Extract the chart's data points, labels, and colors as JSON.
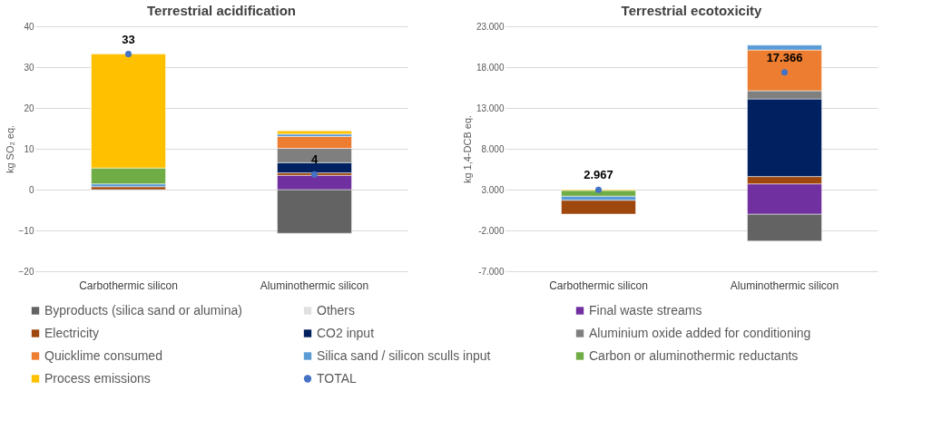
{
  "chart_data": [
    {
      "type": "bar",
      "title": "Terrestrial acidification",
      "ylabel": "kg SO₂ eq.",
      "categories": [
        "Carbothermic silicon",
        "Aluminothermic silicon"
      ],
      "stacked": true,
      "ylim": [
        -20,
        40
      ],
      "yticks": [
        -20,
        -10,
        0,
        10,
        20,
        30,
        40
      ],
      "grid": "y",
      "legend": "bottom",
      "series": [
        {
          "name": "Byproducts (silica sand or alumina)",
          "color": "#636363",
          "values": [
            null,
            -10.7
          ]
        },
        {
          "name": "Others",
          "color": "#e0e0e0",
          "values": [
            null,
            null
          ]
        },
        {
          "name": "Final waste streams",
          "color": "#7030a0",
          "values": [
            null,
            3.5
          ]
        },
        {
          "name": "Electricity",
          "color": "#9e480e",
          "values": [
            0.7,
            0.6
          ]
        },
        {
          "name": "CO2 input",
          "color": "#002060",
          "values": [
            null,
            2.5
          ]
        },
        {
          "name": "Aluminium oxide added for conditioning",
          "color": "#7f7f7f",
          "values": [
            null,
            3.5
          ]
        },
        {
          "name": "Quicklime consumed",
          "color": "#ed7d31",
          "values": [
            null,
            2.9
          ]
        },
        {
          "name": "Silica sand / silicon sculls input",
          "color": "#5b9bd5",
          "values": [
            0.7,
            0.6
          ]
        },
        {
          "name": "Carbon or aluminothermic reductants",
          "color": "#70ad47",
          "values": [
            3.9,
            null
          ]
        },
        {
          "name": "Process emissions",
          "color": "#ffc000",
          "values": [
            27.9,
            0.8
          ]
        },
        {
          "name": "TOTAL",
          "type": "scatter",
          "color": "#4472c4",
          "values": [
            33.2,
            3.7
          ],
          "value_labels": [
            "33",
            "4"
          ]
        }
      ]
    },
    {
      "type": "bar",
      "title": "Terrestrial ecotoxicity",
      "ylabel": "kg 1,4-DCB eq.",
      "categories": [
        "Carbothermic silicon",
        "Aluminothermic silicon"
      ],
      "stacked": true,
      "ylim": [
        -7000,
        23000
      ],
      "yticks": [
        {
          "value": -7000,
          "label": "-7.000"
        },
        {
          "value": -2000,
          "label": "-2.000"
        },
        {
          "value": 3000,
          "label": "3.000"
        },
        {
          "value": 8000,
          "label": "8.000"
        },
        {
          "value": 13000,
          "label": "13.000"
        },
        {
          "value": 18000,
          "label": "18.000"
        },
        {
          "value": 23000,
          "label": "23.000"
        }
      ],
      "grid": "y",
      "legend": "bottom",
      "series": [
        {
          "name": "Byproducts (silica sand or alumina)",
          "color": "#636363",
          "values": [
            null,
            -3300
          ]
        },
        {
          "name": "Final waste streams",
          "color": "#7030a0",
          "values": [
            null,
            3700
          ]
        },
        {
          "name": "Electricity",
          "color": "#9e480e",
          "values": [
            1700,
            900
          ]
        },
        {
          "name": "CO2 input",
          "color": "#002060",
          "values": [
            null,
            9500
          ]
        },
        {
          "name": "Aluminium oxide added for conditioning",
          "color": "#7f7f7f",
          "values": [
            null,
            1000
          ]
        },
        {
          "name": "Quicklime consumed",
          "color": "#ed7d31",
          "values": [
            null,
            5000
          ]
        },
        {
          "name": "Silica sand / silicon sculls input",
          "color": "#5b9bd5",
          "values": [
            500,
            600
          ]
        },
        {
          "name": "Carbon or aluminothermic reductants",
          "color": "#70ad47",
          "values": [
            700,
            null
          ]
        },
        {
          "name": "Process emissions",
          "color": "#ffc000",
          "values": [
            100,
            null
          ]
        },
        {
          "name": "TOTAL",
          "type": "scatter",
          "color": "#4472c4",
          "values": [
            2967,
            17366
          ],
          "value_labels": [
            "2.967",
            "17.366"
          ]
        }
      ]
    }
  ]
}
